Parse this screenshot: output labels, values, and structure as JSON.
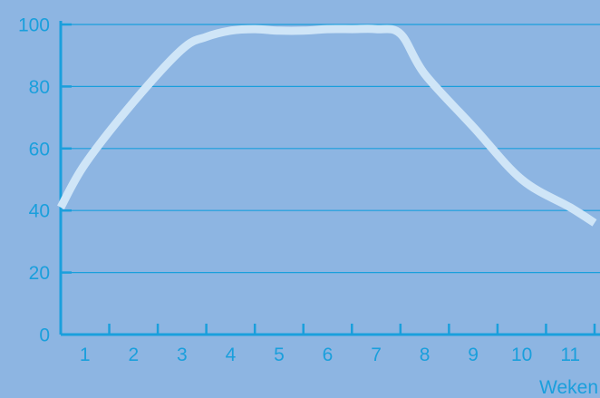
{
  "chart_data": {
    "type": "line",
    "title": "",
    "xlabel": "Weken",
    "ylabel": "",
    "x_ticks": [
      "1",
      "2",
      "3",
      "4",
      "5",
      "6",
      "7",
      "8",
      "9",
      "10",
      "11"
    ],
    "y_ticks": [
      "0",
      "20",
      "40",
      "60",
      "80",
      "100"
    ],
    "ylim": [
      0,
      100
    ],
    "xlim": [
      0.5,
      11.5
    ],
    "grid": "horizontal",
    "series": [
      {
        "x": [
          0.5,
          1,
          2,
          3,
          3.5,
          4,
          4.5,
          5,
          5.5,
          6,
          6.5,
          7,
          7.5,
          8,
          9,
          10,
          11,
          11.5
        ],
        "values": [
          41,
          55,
          75,
          92,
          96,
          98,
          98.5,
          98,
          98,
          98.5,
          98.5,
          98.5,
          97,
          84,
          67,
          50,
          41,
          36
        ]
      }
    ],
    "colors": {
      "background": "#8db5e2",
      "axis": "#1a9fdc",
      "grid": "#1a9fdc",
      "line": "#cfe5f7",
      "text": "#1a9fdc"
    }
  }
}
